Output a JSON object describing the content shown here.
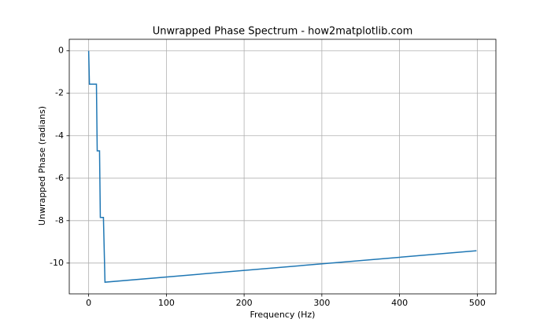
{
  "chart_data": {
    "type": "line",
    "title": "Unwrapped Phase Spectrum - how2matplotlib.com",
    "x_label": "Frequency (Hz)",
    "y_label": "Unwrapped Phase (radians)",
    "series": [
      {
        "color": "#1f77b4",
        "x": [
          0,
          1,
          10,
          11,
          14,
          15,
          19,
          21,
          499
        ],
        "values": [
          0,
          -1.57,
          -1.57,
          -4.71,
          -4.71,
          -7.85,
          -7.85,
          -10.9,
          -9.42
        ]
      }
    ],
    "xlim": [
      -24.95,
      523.95
    ],
    "xticks": [
      0,
      100,
      200,
      300,
      400,
      500
    ],
    "ylim": [
      -11.45,
      0.545
    ],
    "yticks": [
      0,
      -2,
      -4,
      -6,
      -8,
      -10
    ],
    "grid": true
  }
}
